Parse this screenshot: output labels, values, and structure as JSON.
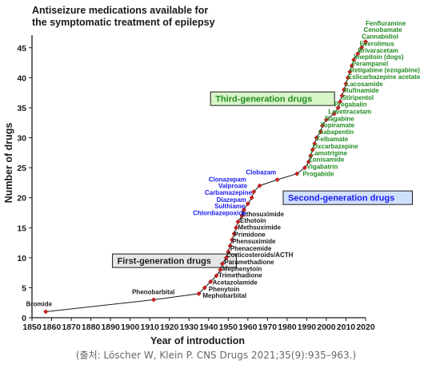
{
  "chart_data": {
    "type": "line",
    "title_lines": [
      "Antiseizure medications available for",
      "the symptomatic treatment of epilepsy"
    ],
    "xlabel": "Year of introduction",
    "ylabel": "Number of drugs",
    "xlim": [
      1850,
      2020
    ],
    "ylim": [
      0,
      47
    ],
    "xticks": [
      "1850",
      "1860",
      "1870",
      "1880",
      "1890",
      "1900",
      "1910",
      "1920",
      "1930",
      "1940",
      "1950",
      "1960",
      "1970",
      "1980",
      "1990",
      "2000",
      "2010",
      "2020"
    ],
    "yticks": [
      "0",
      "5",
      "10",
      "15",
      "20",
      "25",
      "30",
      "35",
      "40",
      "45"
    ],
    "series": [
      {
        "color": "#d22020",
        "points": [
          [
            1857,
            1
          ],
          [
            1912,
            3
          ],
          [
            1935,
            4
          ],
          [
            1938,
            5
          ],
          [
            1941,
            6
          ],
          [
            1944,
            7
          ],
          [
            1946,
            8
          ],
          [
            1947,
            9
          ],
          [
            1949,
            10
          ],
          [
            1950,
            11
          ],
          [
            1951,
            12
          ],
          [
            1952,
            13
          ],
          [
            1953,
            14
          ],
          [
            1954,
            15
          ],
          [
            1955,
            16
          ],
          [
            1957,
            17
          ],
          [
            1958,
            18
          ],
          [
            1960,
            19
          ],
          [
            1962,
            20
          ],
          [
            1963,
            21
          ],
          [
            1966,
            22
          ],
          [
            1975,
            23
          ],
          [
            1985,
            24
          ],
          [
            1989,
            25
          ],
          [
            1991,
            26
          ],
          [
            1992,
            27
          ],
          [
            1993,
            28
          ],
          [
            1994,
            29
          ],
          [
            1995,
            30
          ],
          [
            1997,
            31
          ],
          [
            1998,
            32
          ],
          [
            2000,
            33
          ],
          [
            2004,
            34
          ],
          [
            2006,
            35
          ],
          [
            2007,
            36
          ],
          [
            2008,
            37
          ],
          [
            2009,
            38
          ],
          [
            2010,
            39
          ],
          [
            2011,
            40
          ],
          [
            2012,
            41
          ],
          [
            2013,
            42
          ],
          [
            2014,
            43
          ],
          [
            2016,
            44
          ],
          [
            2018,
            45
          ],
          [
            2020,
            46
          ]
        ]
      }
    ],
    "drug_labels": {
      "first": {
        "color": "#1a1a1a",
        "items": [
          {
            "text": "Bromide",
            "x": 1847,
            "y": 1.9
          },
          {
            "text": "Phenobarbital",
            "x": 1901,
            "y": 3.9
          },
          {
            "text": "Mephobarbital",
            "x": 1937,
            "y": 3.3
          },
          {
            "text": "Phenytoin",
            "x": 1940,
            "y": 4.4
          },
          {
            "text": "Acetazolamide",
            "x": 1942,
            "y": 5.5
          },
          {
            "text": "Trimethadione",
            "x": 1945,
            "y": 6.7
          },
          {
            "text": "Mephenytoin",
            "x": 1947,
            "y": 7.8
          },
          {
            "text": "Paramethadione",
            "x": 1948,
            "y": 8.9
          },
          {
            "text": "Corticosteroids/ACTH",
            "x": 1949,
            "y": 10.1
          },
          {
            "text": "Phenacemide",
            "x": 1951,
            "y": 11.2
          },
          {
            "text": "Phensuximide",
            "x": 1952,
            "y": 12.4
          },
          {
            "text": "Primidone",
            "x": 1953,
            "y": 13.5
          },
          {
            "text": "Methsuximide",
            "x": 1955,
            "y": 14.7
          },
          {
            "text": "Ethotoin",
            "x": 1956,
            "y": 15.8
          },
          {
            "text": "Ethosuximide",
            "x": 1957,
            "y": 16.9
          }
        ]
      },
      "second": {
        "color": "#1a1aee",
        "items": [
          {
            "text": "Chlordiazepoxide",
            "x": 1932,
            "y": 17.1
          },
          {
            "text": "Sulthiame",
            "x": 1943,
            "y": 18.2
          },
          {
            "text": "Diazepam",
            "x": 1944,
            "y": 19.3
          },
          {
            "text": "Carbamazepine",
            "x": 1938,
            "y": 20.5
          },
          {
            "text": "Valproate",
            "x": 1945,
            "y": 21.6
          },
          {
            "text": "Clonazepam",
            "x": 1940,
            "y": 22.7
          },
          {
            "text": "Clobazam",
            "x": 1959,
            "y": 23.9
          }
        ]
      },
      "third": {
        "color": "#228b22",
        "items": [
          {
            "text": "Progabide",
            "x": 1988,
            "y": 23.6
          },
          {
            "text": "Vigabatrin",
            "x": 1990,
            "y": 24.8
          },
          {
            "text": "Zonisamide",
            "x": 1991,
            "y": 26.0
          },
          {
            "text": "Lamotrigine",
            "x": 1992,
            "y": 27.1
          },
          {
            "text": "Oxcarbazepine",
            "x": 1993,
            "y": 28.2
          },
          {
            "text": "Felbamate",
            "x": 1995,
            "y": 29.4
          },
          {
            "text": "Gabapentin",
            "x": 1996,
            "y": 30.6
          },
          {
            "text": "Topiramate",
            "x": 1997,
            "y": 31.7
          },
          {
            "text": "Tiagabine",
            "x": 1999,
            "y": 32.8
          },
          {
            "text": "Levetiracetam",
            "x": 2001,
            "y": 34.0
          },
          {
            "text": "Pregabalin",
            "x": 2004,
            "y": 35.2
          },
          {
            "text": "Stiripentol",
            "x": 2008,
            "y": 36.3
          },
          {
            "text": "Rufinamide",
            "x": 2009,
            "y": 37.5
          },
          {
            "text": "Lacosamide",
            "x": 2010,
            "y": 38.6
          },
          {
            "text": "Eslicarbazepine acetate",
            "x": 2011,
            "y": 39.8
          },
          {
            "text": "Retigabine (ezogabine)",
            "x": 2012,
            "y": 40.9
          },
          {
            "text": "Perampanel",
            "x": 2013,
            "y": 42.0
          },
          {
            "text": "Imepitoin (dogs)",
            "x": 2014,
            "y": 43.1
          },
          {
            "text": "Brivaracetam",
            "x": 2016,
            "y": 44.2
          },
          {
            "text": "Everolimus",
            "x": 2017,
            "y": 45.3
          },
          {
            "text": "Cannabidiol",
            "x": 2018,
            "y": 46.5
          },
          {
            "text": "Cenobamate",
            "x": 2019,
            "y": 47.6
          },
          {
            "text": "Fenfluramine",
            "x": 2020,
            "y": 48.7
          }
        ]
      }
    },
    "annotations": [
      {
        "text": "First-generation drugs",
        "x": 1891,
        "y": 9.5,
        "bg": "#e6e6e6",
        "fg": "#1a1a1a"
      },
      {
        "text": "Second-generation drugs",
        "x": 1978,
        "y": 20.0,
        "bg": "#cfe0ff",
        "fg": "#1a1aee"
      },
      {
        "text": "Third-generation drugs",
        "x": 1941,
        "y": 36.5,
        "bg": "#d8f5c8",
        "fg": "#228b22"
      }
    ],
    "grid": false
  },
  "caption": "(출처: Löscher W, Klein P. CNS Drugs 2021;35(9):935–963.)"
}
